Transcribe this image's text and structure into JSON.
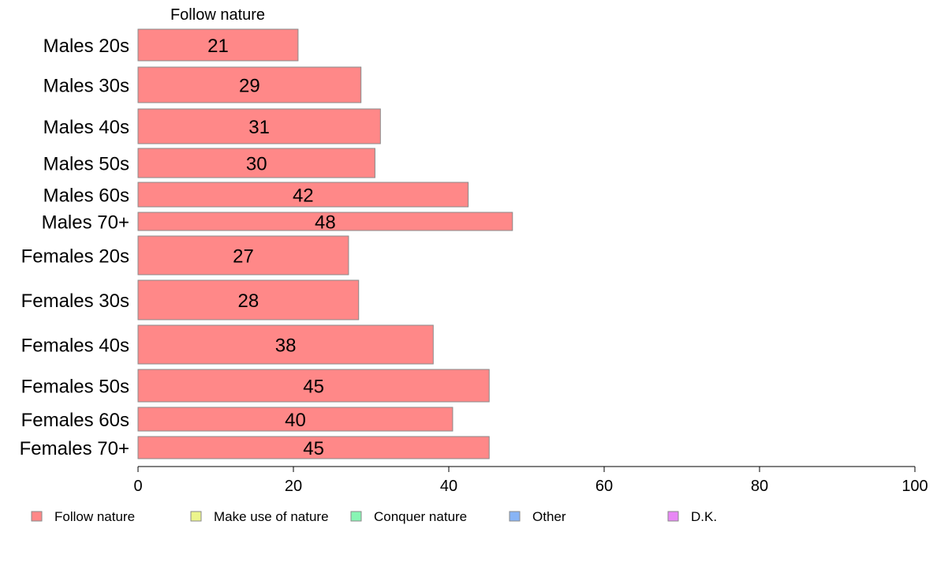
{
  "chart_data": {
    "type": "bar",
    "orientation": "horizontal",
    "stacked": true,
    "categories": [
      "Males 20s",
      "Males 30s",
      "Males 40s",
      "Males 50s",
      "Males 60s",
      "Males 70+",
      "Females 20s",
      "Females 30s",
      "Females 40s",
      "Females 50s",
      "Females 60s",
      "Females 70+"
    ],
    "series": [
      {
        "name": "Follow nature",
        "values": [
          21,
          29,
          31,
          30,
          42,
          48,
          27,
          28,
          38,
          45,
          40,
          45
        ],
        "color": "#ff8888"
      }
    ],
    "bar_value_estimates": [
      20.6,
      28.7,
      31.2,
      30.5,
      42.5,
      48.2,
      27.1,
      28.4,
      38.0,
      45.2,
      40.5,
      45.2
    ],
    "column_header": "Follow nature",
    "xlim": [
      0,
      100
    ],
    "xticks": [
      0,
      20,
      40,
      60,
      80,
      100
    ],
    "legend": {
      "placement": "bottom",
      "entries": [
        {
          "name": "Follow nature",
          "color": "#ff8888"
        },
        {
          "name": "Make use of nature",
          "color": "#ecf58c"
        },
        {
          "name": "Conquer nature",
          "color": "#88f5b4"
        },
        {
          "name": "Other",
          "color": "#88b4f5"
        },
        {
          "name": "D.K.",
          "color": "#e888f5"
        }
      ]
    },
    "grid": false
  }
}
